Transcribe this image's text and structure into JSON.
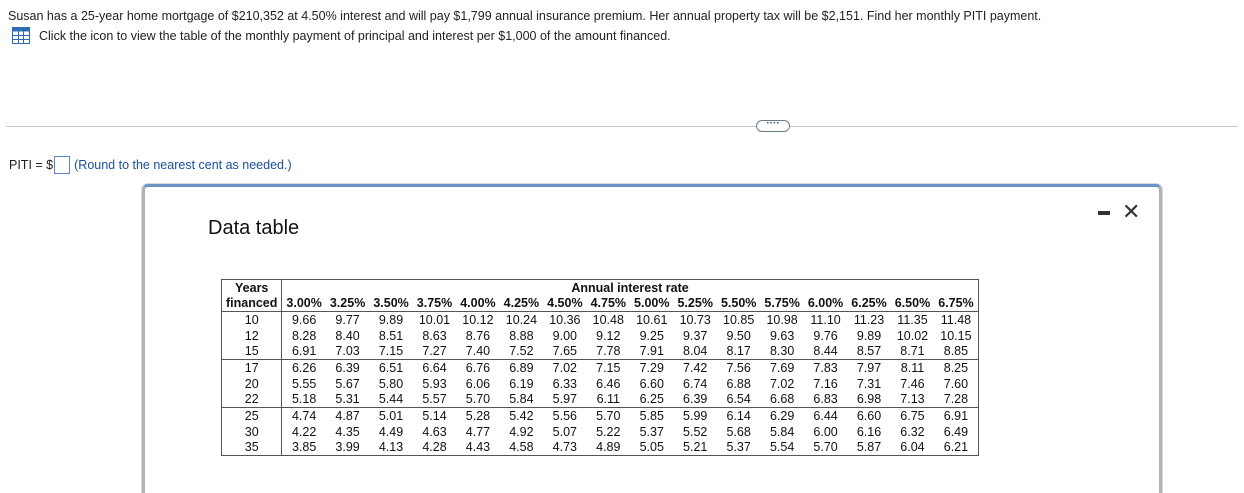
{
  "question": {
    "text": "Susan has a 25-year home mortgage of $210,352 at 4.50% interest and will pay $1,799 annual insurance premium. Her annual property tax will be $2,151. Find her monthly PITI payment.",
    "hint": "Click the icon to view the table of the monthly payment of principal and interest per $1,000 of the amount financed."
  },
  "answer": {
    "label": "PITI = $",
    "value": "",
    "note": "(Round to the nearest cent as needed.)"
  },
  "more_button": {
    "label": "····"
  },
  "dialog": {
    "title": "Data table",
    "minimize_label": "–",
    "close_label": "✕"
  },
  "table": {
    "header_years_top": "Years",
    "header_years_bottom": "financed",
    "header_group": "Annual interest rate",
    "rates": [
      "3.00%",
      "3.25%",
      "3.50%",
      "3.75%",
      "4.00%",
      "4.25%",
      "4.50%",
      "4.75%",
      "5.00%",
      "5.25%",
      "5.50%",
      "5.75%",
      "6.00%",
      "6.25%",
      "6.50%",
      "6.75%"
    ],
    "rows": [
      {
        "years": "10",
        "values": [
          "9.66",
          "9.77",
          "9.89",
          "10.01",
          "10.12",
          "10.24",
          "10.36",
          "10.48",
          "10.61",
          "10.73",
          "10.85",
          "10.98",
          "11.10",
          "11.23",
          "11.35",
          "11.48"
        ]
      },
      {
        "years": "12",
        "values": [
          "8.28",
          "8.40",
          "8.51",
          "8.63",
          "8.76",
          "8.88",
          "9.00",
          "9.12",
          "9.25",
          "9.37",
          "9.50",
          "9.63",
          "9.76",
          "9.89",
          "10.02",
          "10.15"
        ]
      },
      {
        "years": "15",
        "values": [
          "6.91",
          "7.03",
          "7.15",
          "7.27",
          "7.40",
          "7.52",
          "7.65",
          "7.78",
          "7.91",
          "8.04",
          "8.17",
          "8.30",
          "8.44",
          "8.57",
          "8.71",
          "8.85"
        ]
      },
      {
        "years": "17",
        "values": [
          "6.26",
          "6.39",
          "6.51",
          "6.64",
          "6.76",
          "6.89",
          "7.02",
          "7.15",
          "7.29",
          "7.42",
          "7.56",
          "7.69",
          "7.83",
          "7.97",
          "8.11",
          "8.25"
        ]
      },
      {
        "years": "20",
        "values": [
          "5.55",
          "5.67",
          "5.80",
          "5.93",
          "6.06",
          "6.19",
          "6.33",
          "6.46",
          "6.60",
          "6.74",
          "6.88",
          "7.02",
          "7.16",
          "7.31",
          "7.46",
          "7.60"
        ]
      },
      {
        "years": "22",
        "values": [
          "5.18",
          "5.31",
          "5.44",
          "5.57",
          "5.70",
          "5.84",
          "5.97",
          "6.11",
          "6.25",
          "6.39",
          "6.54",
          "6.68",
          "6.83",
          "6.98",
          "7.13",
          "7.28"
        ]
      },
      {
        "years": "25",
        "values": [
          "4.74",
          "4.87",
          "5.01",
          "5.14",
          "5.28",
          "5.42",
          "5.56",
          "5.70",
          "5.85",
          "5.99",
          "6.14",
          "6.29",
          "6.44",
          "6.60",
          "6.75",
          "6.91"
        ]
      },
      {
        "years": "30",
        "values": [
          "4.22",
          "4.35",
          "4.49",
          "4.63",
          "4.77",
          "4.92",
          "5.07",
          "5.22",
          "5.37",
          "5.52",
          "5.68",
          "5.84",
          "6.00",
          "6.16",
          "6.32",
          "6.49"
        ]
      },
      {
        "years": "35",
        "values": [
          "3.85",
          "3.99",
          "4.13",
          "4.28",
          "4.43",
          "4.58",
          "4.73",
          "4.89",
          "5.05",
          "5.21",
          "5.37",
          "5.54",
          "5.70",
          "5.87",
          "6.04",
          "6.21"
        ]
      }
    ]
  },
  "colors": {
    "link_blue": "#1a4f9c",
    "dialog_border": "#6b95c9"
  },
  "icons": {
    "table_icon": "table-grid-icon"
  }
}
